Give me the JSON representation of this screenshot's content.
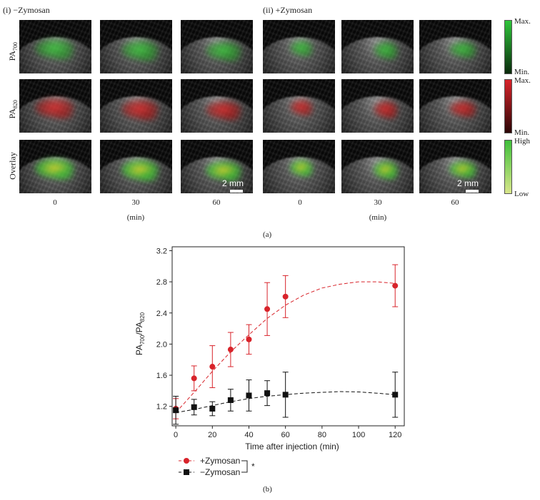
{
  "panel_a": {
    "left_title": "(i) −Zymosan",
    "right_title": "(ii) +Zymosan",
    "row_labels": {
      "pa700_main": "PA",
      "pa700_sub": "700",
      "pa820_main": "PA",
      "pa820_sub": "820",
      "overlay": "Overlay"
    },
    "time_labels": [
      "0",
      "30",
      "60"
    ],
    "time_unit": "(min)",
    "scale_bar": "2 mm",
    "colorbars": {
      "pa700": {
        "top": "Max.",
        "bottom": "Min.",
        "color": "#2ec43a"
      },
      "pa820": {
        "top": "Max.",
        "bottom": "Min.",
        "color": "#d8232a"
      },
      "overlay": {
        "top": "High",
        "bottom": "Low",
        "color": "#3fbf3a"
      }
    },
    "caption": "(a)"
  },
  "panel_b": {
    "caption": "(b)",
    "legend": {
      "plus": "+Zymosan",
      "minus": "−Zymosan",
      "significance": "*"
    }
  },
  "chart_data": {
    "type": "scatter",
    "xlabel": "Time after injection (min)",
    "ylabel_main": "PA",
    "ylabel_sub1": "700",
    "ylabel_mid": "/PA",
    "ylabel_sub2": "820",
    "xlim": [
      -2,
      125
    ],
    "ylim": [
      0.95,
      3.25
    ],
    "xticks": [
      0,
      20,
      40,
      60,
      80,
      100,
      120
    ],
    "yticks": [
      1.2,
      1.6,
      2.0,
      2.4,
      2.8,
      3.2
    ],
    "series": [
      {
        "name": "+Zymosan",
        "color": "#d8232a",
        "marker": "circle",
        "x": [
          0,
          10,
          20,
          30,
          40,
          50,
          60,
          120
        ],
        "y": [
          1.17,
          1.56,
          1.71,
          1.93,
          2.06,
          2.45,
          2.61,
          2.75
        ],
        "err": [
          0.13,
          0.16,
          0.27,
          0.22,
          0.19,
          0.34,
          0.27,
          0.27
        ],
        "fit": [
          [
            0,
            1.12
          ],
          [
            10,
            1.38
          ],
          [
            20,
            1.65
          ],
          [
            30,
            1.9
          ],
          [
            40,
            2.12
          ],
          [
            50,
            2.33
          ],
          [
            60,
            2.5
          ],
          [
            70,
            2.63
          ],
          [
            80,
            2.72
          ],
          [
            90,
            2.77
          ],
          [
            100,
            2.8
          ],
          [
            110,
            2.8
          ],
          [
            120,
            2.78
          ]
        ]
      },
      {
        "name": "−Zymosan",
        "color": "#111111",
        "marker": "square",
        "x": [
          0,
          10,
          20,
          30,
          40,
          50,
          60,
          120
        ],
        "y": [
          1.15,
          1.19,
          1.17,
          1.28,
          1.34,
          1.37,
          1.35,
          1.35
        ],
        "err": [
          0.18,
          0.1,
          0.09,
          0.14,
          0.2,
          0.16,
          0.29,
          0.29
        ],
        "fit": [
          [
            0,
            1.12
          ],
          [
            10,
            1.16
          ],
          [
            20,
            1.21
          ],
          [
            30,
            1.26
          ],
          [
            40,
            1.3
          ],
          [
            50,
            1.33
          ],
          [
            60,
            1.35
          ],
          [
            70,
            1.37
          ],
          [
            80,
            1.38
          ],
          [
            90,
            1.39
          ],
          [
            100,
            1.385
          ],
          [
            110,
            1.37
          ],
          [
            120,
            1.35
          ]
        ]
      }
    ]
  }
}
